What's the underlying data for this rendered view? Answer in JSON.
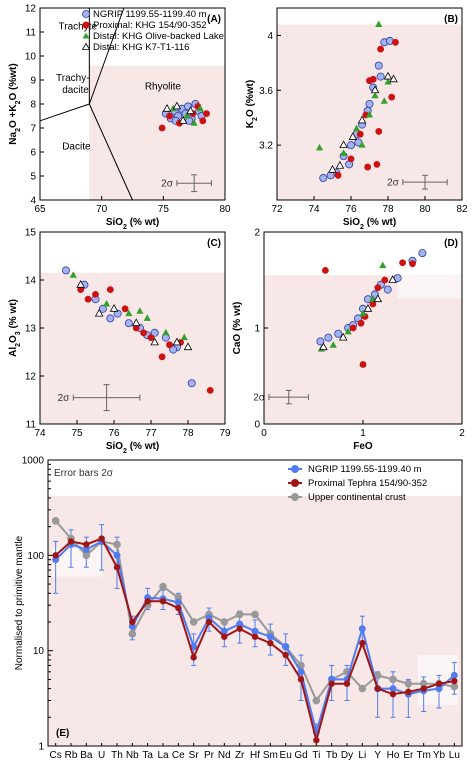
{
  "colors": {
    "shade": "#f7e7e7",
    "ngrip": "#a3b2f2",
    "ngrip_stroke": "#2a3f9a",
    "proximal": "#cc1111",
    "distal_green": "#33a02c",
    "distal_open": "#ffffff",
    "uc": "#999999",
    "ngrip_line": "#4f7cf0",
    "prox_line": "#a01515"
  },
  "legend_top": {
    "ngrip": "NGRIP 1199.55-1199.40 m",
    "proximal": "Proximal: KHG 154/90-352",
    "distal1": "Distal: KHG Olive-backed Lake",
    "distal2": "Distal: KHG K7-T1-116"
  },
  "chart_data": [
    {
      "id": "A",
      "type": "scatter",
      "panel_label": "(A)",
      "xlabel": "SiO2 (% wt)",
      "ylabel": "Na2O +K2O (%wt)",
      "xlim": [
        65,
        80
      ],
      "ylim": [
        4,
        12
      ],
      "xticks": [
        65,
        70,
        75,
        80
      ],
      "yticks": [
        4,
        5,
        6,
        7,
        8,
        9,
        10,
        11,
        12
      ],
      "fields": [
        "Trachyte",
        "Trachy-dacite",
        "Rhyolite",
        "Dacite"
      ],
      "error_label": "2σ",
      "series": {
        "ngrip": [
          [
            75.2,
            7.6
          ],
          [
            75.6,
            7.4
          ],
          [
            75.9,
            7.7
          ],
          [
            76.2,
            7.5
          ],
          [
            76.5,
            7.8
          ],
          [
            76.8,
            7.6
          ],
          [
            77.0,
            7.9
          ],
          [
            77.3,
            7.4
          ],
          [
            77.6,
            8.0
          ],
          [
            77.9,
            7.7
          ],
          [
            78.1,
            7.5
          ],
          [
            76.0,
            7.3
          ],
          [
            77.1,
            7.3
          ]
        ],
        "proximal": [
          [
            74.9,
            7.0
          ],
          [
            75.5,
            7.5
          ],
          [
            76.3,
            7.2
          ],
          [
            77.4,
            7.6
          ],
          [
            78.2,
            7.3
          ],
          [
            78.5,
            7.6
          ],
          [
            77.8,
            7.9
          ]
        ],
        "distal_green": [
          [
            75.8,
            7.8
          ],
          [
            76.9,
            7.5
          ],
          [
            77.5,
            7.2
          ],
          [
            78.0,
            7.8
          ]
        ],
        "distal_open": [
          [
            75.3,
            7.8
          ],
          [
            76.1,
            7.9
          ],
          [
            76.6,
            7.3
          ],
          [
            77.2,
            7.7
          ]
        ]
      }
    },
    {
      "id": "B",
      "type": "scatter",
      "panel_label": "(B)",
      "xlabel": "SiO2 (% wt)",
      "ylabel": "K2O (%wt)",
      "xlim": [
        72,
        82
      ],
      "ylim": [
        2.8,
        4.2
      ],
      "xticks": [
        72,
        74,
        76,
        78,
        80,
        82
      ],
      "yticks": [
        3.2,
        3.6,
        4.0
      ],
      "error_label": "2σ",
      "series": {
        "ngrip": [
          [
            74.5,
            2.96
          ],
          [
            75.2,
            3.0
          ],
          [
            75.6,
            3.12
          ],
          [
            76.0,
            3.2
          ],
          [
            76.3,
            3.28
          ],
          [
            76.6,
            3.35
          ],
          [
            76.9,
            3.45
          ],
          [
            77.2,
            3.62
          ],
          [
            77.5,
            3.78
          ],
          [
            77.8,
            3.95
          ],
          [
            78.1,
            3.96
          ],
          [
            75.9,
            3.06
          ],
          [
            76.4,
            3.22
          ],
          [
            77.0,
            3.5
          ],
          [
            77.6,
            3.7
          ],
          [
            74.9,
            2.98
          ]
        ],
        "proximal": [
          [
            75.3,
            2.98
          ],
          [
            76.0,
            3.1
          ],
          [
            76.5,
            3.28
          ],
          [
            76.9,
            3.04
          ],
          [
            77.4,
            3.06
          ],
          [
            77.2,
            3.68
          ],
          [
            77.6,
            3.9
          ],
          [
            78.2,
            3.55
          ],
          [
            77.0,
            3.67
          ],
          [
            76.8,
            3.42
          ],
          [
            77.5,
            3.3
          ],
          [
            78.4,
            3.95
          ]
        ],
        "distal_green": [
          [
            74.3,
            3.18
          ],
          [
            75.6,
            3.14
          ],
          [
            76.3,
            3.32
          ],
          [
            77.0,
            3.42
          ],
          [
            77.3,
            3.56
          ],
          [
            77.5,
            4.08
          ],
          [
            78.0,
            3.66
          ],
          [
            77.8,
            3.52
          ],
          [
            76.6,
            3.2
          ]
        ],
        "distal_open": [
          [
            75.0,
            3.02
          ],
          [
            75.6,
            3.2
          ],
          [
            76.1,
            3.26
          ],
          [
            76.6,
            3.38
          ],
          [
            77.3,
            3.6
          ],
          [
            78.0,
            3.7
          ],
          [
            78.3,
            3.68
          ],
          [
            75.4,
            3.05
          ]
        ]
      }
    },
    {
      "id": "C",
      "type": "scatter",
      "panel_label": "(C)",
      "xlabel": "SiO2 (% wt)",
      "ylabel": "Al2O3 (% wt)",
      "xlim": [
        74,
        79
      ],
      "ylim": [
        11,
        15
      ],
      "xticks": [
        74,
        75,
        76,
        77,
        78,
        79
      ],
      "yticks": [
        11,
        12,
        13,
        14,
        15
      ],
      "error_label": "2σ",
      "series": {
        "ngrip": [
          [
            74.7,
            14.2
          ],
          [
            75.2,
            13.9
          ],
          [
            75.5,
            13.6
          ],
          [
            75.7,
            13.4
          ],
          [
            76.1,
            13.3
          ],
          [
            76.4,
            13.1
          ],
          [
            76.7,
            13.0
          ],
          [
            77.1,
            12.9
          ],
          [
            77.4,
            12.8
          ],
          [
            77.7,
            12.6
          ],
          [
            78.1,
            11.85
          ],
          [
            75.9,
            13.2
          ],
          [
            76.9,
            12.85
          ],
          [
            77.6,
            12.55
          ]
        ],
        "proximal": [
          [
            75.1,
            13.8
          ],
          [
            75.5,
            13.7
          ],
          [
            75.9,
            13.8
          ],
          [
            76.3,
            13.4
          ],
          [
            76.6,
            13.0
          ],
          [
            77.0,
            12.8
          ],
          [
            77.3,
            12.4
          ],
          [
            77.8,
            12.7
          ],
          [
            78.6,
            11.7
          ],
          [
            76.8,
            12.9
          ],
          [
            75.3,
            13.6
          ],
          [
            77.5,
            12.65
          ]
        ],
        "distal_green": [
          [
            74.9,
            14.1
          ],
          [
            75.8,
            13.5
          ],
          [
            76.4,
            13.3
          ],
          [
            76.9,
            13.2
          ],
          [
            77.4,
            12.9
          ],
          [
            77.9,
            12.8
          ],
          [
            76.7,
            13.35
          ]
        ],
        "distal_open": [
          [
            75.1,
            13.9
          ],
          [
            75.6,
            13.3
          ],
          [
            76.0,
            13.4
          ],
          [
            76.6,
            13.1
          ],
          [
            77.1,
            12.7
          ],
          [
            77.7,
            12.7
          ],
          [
            78.0,
            12.6
          ]
        ]
      }
    },
    {
      "id": "D",
      "type": "scatter",
      "panel_label": "(D)",
      "xlabel": "FeO",
      "ylabel": "CaO (% wt)",
      "xlim": [
        0,
        2
      ],
      "ylim": [
        0,
        2
      ],
      "xticks": [
        0,
        1,
        2
      ],
      "yticks": [
        0,
        1,
        2
      ],
      "error_label": "2σ",
      "series": {
        "ngrip": [
          [
            0.57,
            0.86
          ],
          [
            0.65,
            0.9
          ],
          [
            0.75,
            0.94
          ],
          [
            0.85,
            1.0
          ],
          [
            0.95,
            1.1
          ],
          [
            1.0,
            1.2
          ],
          [
            1.05,
            1.3
          ],
          [
            1.12,
            1.35
          ],
          [
            1.18,
            1.45
          ],
          [
            1.35,
            1.52
          ],
          [
            1.5,
            1.7
          ],
          [
            1.6,
            1.78
          ],
          [
            0.9,
            1.03
          ],
          [
            1.25,
            1.4
          ]
        ],
        "proximal": [
          [
            0.62,
            1.6
          ],
          [
            0.9,
            1.0
          ],
          [
            1.0,
            0.62
          ],
          [
            1.02,
            1.12
          ],
          [
            1.1,
            1.25
          ],
          [
            1.15,
            1.42
          ],
          [
            1.22,
            1.5
          ],
          [
            1.4,
            1.68
          ],
          [
            1.5,
            1.67
          ],
          [
            0.98,
            1.05
          ]
        ],
        "distal_green": [
          [
            0.58,
            0.78
          ],
          [
            0.7,
            0.82
          ],
          [
            1.0,
            1.15
          ],
          [
            1.2,
            1.65
          ],
          [
            1.1,
            1.3
          ],
          [
            0.85,
            0.96
          ]
        ],
        "distal_open": [
          [
            0.6,
            0.8
          ],
          [
            0.8,
            0.9
          ],
          [
            1.05,
            1.2
          ],
          [
            1.15,
            1.3
          ],
          [
            1.3,
            1.5
          ]
        ]
      }
    },
    {
      "id": "E",
      "type": "line",
      "panel_label": "(E)",
      "ylabel": "Normalised to primitive mantle",
      "yscale": "log",
      "ylim": [
        1,
        1000
      ],
      "yticks": [
        1,
        10,
        100,
        1000
      ],
      "note": "Error bars 2σ",
      "categories": [
        "Cs",
        "Rb",
        "Ba",
        "U",
        "Th",
        "Nb",
        "Ta",
        "La",
        "Ce",
        "Sr",
        "Pr",
        "Nd",
        "Zr",
        "Hf",
        "Sm",
        "Eu",
        "Gd",
        "Ti",
        "Tb",
        "Dy",
        "Li",
        "Y",
        "Ho",
        "Er",
        "Tm",
        "Yb",
        "Lu"
      ],
      "series": [
        {
          "name": "NGRIP 1199.55-1199.40 m",
          "values": [
            90,
            130,
            115,
            140,
            100,
            18,
            36,
            35,
            32,
            11,
            22,
            16,
            19,
            16,
            14,
            11,
            6,
            1.4,
            5,
            5,
            17,
            4,
            4,
            3.5,
            3.8,
            4,
            5.5
          ],
          "err": [
            50,
            55,
            40,
            70,
            55,
            5,
            9,
            8,
            8,
            4,
            6,
            5,
            7,
            5,
            5,
            4,
            3,
            0.3,
            2,
            2,
            6,
            2,
            2,
            1.5,
            1.5,
            1.5,
            2
          ]
        },
        {
          "name": "Proximal Tephra 154/90-352",
          "values": [
            100,
            140,
            130,
            150,
            75,
            20,
            33,
            33,
            28,
            8.5,
            20,
            14,
            17,
            14,
            12,
            9,
            5,
            1.15,
            4.5,
            4.5,
            12,
            4,
            3.5,
            3.7,
            4,
            4.5,
            4.8
          ]
        },
        {
          "name": "Upper continental crust",
          "values": [
            230,
            150,
            100,
            140,
            130,
            15,
            30,
            47,
            36,
            20,
            24,
            20,
            24,
            24,
            15,
            11,
            7,
            3,
            5,
            6,
            4,
            5.5,
            5,
            4.5,
            4.5,
            4.5,
            4.2
          ]
        }
      ]
    }
  ]
}
